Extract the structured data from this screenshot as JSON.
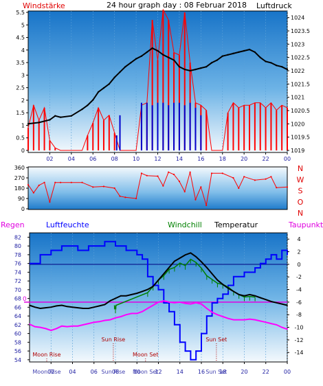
{
  "page": {
    "title": "24 hour graph day : 08 Februar 2018",
    "left_label": "Windstärke",
    "right_label": "Luftdruck"
  },
  "chart_data": [
    {
      "id": "wind-pressure",
      "type": "line",
      "x_ticks": [
        "02",
        "04",
        "06",
        "08",
        "10",
        "12",
        "14",
        "16",
        "18",
        "20",
        "22",
        "00"
      ],
      "x_range_hours": [
        0,
        24
      ],
      "left_axis": {
        "label": "Windstärke",
        "ticks": [
          "0",
          "0.5",
          "1",
          "1.5",
          "2",
          "2.5",
          "3",
          "3.5",
          "4",
          "4.5",
          "5",
          "5.5"
        ],
        "range": [
          0,
          5.5
        ]
      },
      "right_axis": {
        "label": "Luftdruck",
        "ticks": [
          "1019",
          "1019.5",
          "1020",
          "1020.5",
          "1021",
          "1021.5",
          "1022",
          "1022.5",
          "1023",
          "1023.5",
          "1024"
        ],
        "range": [
          1019,
          1024.25
        ]
      },
      "series": [
        {
          "name": "Luftdruck",
          "color": "#000000",
          "x": [
            0,
            1,
            2,
            2.5,
            3,
            4,
            5,
            5.5,
            6,
            6.5,
            7,
            7.5,
            8,
            8.5,
            9,
            9.5,
            10,
            10.5,
            11,
            11.5,
            12,
            12.5,
            13,
            13.5,
            14,
            14.5,
            15,
            15.5,
            16,
            16.5,
            17,
            17.5,
            18,
            18.5,
            19,
            19.5,
            20,
            20.5,
            21,
            21.5,
            22,
            22.5,
            23,
            23.5,
            24
          ],
          "y": [
            1020,
            1020.05,
            1020.15,
            1020.3,
            1020.25,
            1020.3,
            1020.55,
            1020.7,
            1020.9,
            1021.2,
            1021.35,
            1021.5,
            1021.75,
            1021.95,
            1022.15,
            1022.3,
            1022.45,
            1022.55,
            1022.7,
            1022.85,
            1022.75,
            1022.6,
            1022.5,
            1022.4,
            1022.15,
            1022.05,
            1022.0,
            1022.05,
            1022.1,
            1022.15,
            1022.3,
            1022.4,
            1022.55,
            1022.6,
            1022.65,
            1022.7,
            1022.75,
            1022.8,
            1022.7,
            1022.5,
            1022.35,
            1022.3,
            1022.2,
            1022.15,
            1022.05
          ]
        },
        {
          "name": "wind-speed",
          "color": "#ff0000",
          "x": [
            0,
            0.5,
            1,
            1.5,
            2,
            2.5,
            3,
            3.5,
            4,
            4.5,
            5,
            5.5,
            6,
            6.5,
            7,
            7.5,
            8,
            8.5,
            9,
            9.5,
            10,
            10.5,
            11,
            11.5,
            12,
            12.5,
            13,
            13.5,
            14,
            14.5,
            15,
            15.5,
            16,
            16.5,
            17,
            17.5,
            18,
            18.5,
            19,
            19.5,
            20,
            20.5,
            21,
            21.5,
            22,
            22.5,
            23,
            23.5,
            24
          ],
          "y": [
            0.9,
            1.8,
            1.2,
            1.7,
            0.4,
            0.1,
            0,
            0,
            0,
            0,
            0,
            0.6,
            1.1,
            1.7,
            1.2,
            1.4,
            0.7,
            0,
            0,
            0,
            0,
            1.8,
            1.9,
            5.2,
            3.6,
            5.6,
            5.2,
            3.9,
            3.8,
            5.5,
            3.5,
            1.9,
            1.8,
            1.6,
            0,
            0,
            0,
            1.5,
            1.9,
            1.7,
            1.8,
            1.8,
            1.9,
            1.9,
            1.7,
            1.9,
            1.6,
            1.8,
            1.7
          ]
        },
        {
          "name": "wind-calm",
          "color": "#0000cc",
          "x": [
            8.2,
            8.5,
            10.5,
            11,
            11.5,
            12,
            12.5,
            13,
            13.5,
            14,
            14.5,
            15,
            15.5,
            16
          ],
          "y": [
            0.6,
            1.4,
            1.9,
            1.9,
            1.8,
            1.9,
            1.9,
            1.8,
            1.9,
            1.9,
            1.8,
            1.9,
            1.7,
            1.4
          ]
        }
      ]
    },
    {
      "id": "wind-direction",
      "type": "line",
      "left_axis": {
        "ticks": [
          "0",
          "90",
          "180",
          "270",
          "360"
        ],
        "range": [
          0,
          360
        ]
      },
      "right_axis": {
        "ticks": [
          "N",
          "W",
          "S",
          "O",
          "N"
        ]
      },
      "series": [
        {
          "name": "direction",
          "color": "#ff0000",
          "x": [
            0,
            0.5,
            1,
            1.5,
            2,
            2.5,
            3,
            4,
            5,
            6,
            7,
            8,
            8.5,
            9,
            10,
            10.5,
            11,
            12,
            12.5,
            13,
            13.5,
            14,
            14.5,
            15,
            15.5,
            16,
            16.5,
            17,
            18,
            19,
            19.5,
            20,
            21,
            22,
            22.5,
            23,
            24
          ],
          "y": [
            210,
            140,
            205,
            230,
            60,
            230,
            230,
            230,
            230,
            190,
            195,
            180,
            110,
            100,
            90,
            310,
            290,
            285,
            200,
            320,
            300,
            240,
            150,
            320,
            80,
            190,
            30,
            310,
            310,
            270,
            180,
            280,
            250,
            260,
            280,
            185,
            190
          ]
        }
      ]
    },
    {
      "id": "humidity-temperature",
      "type": "line",
      "headers": {
        "regen": "Regen",
        "luftfeuchte": "Luftfeuchte",
        "windchill": "Windchill",
        "temperatur": "Temperatur",
        "taupunkt": "Taupunkt"
      },
      "left_axis": {
        "label": "Luftfeuchte",
        "ticks": [
          "54",
          "56",
          "58",
          "60",
          "62",
          "64",
          "66",
          "68",
          "70",
          "72",
          "74",
          "76",
          "78",
          "80",
          "82"
        ],
        "range": [
          53.5,
          83
        ]
      },
      "right_axis": {
        "label": "Temperatur",
        "ticks": [
          "-14",
          "-12",
          "-10",
          "-8",
          "-6",
          "-4",
          "-2",
          "0",
          "2",
          "4"
        ],
        "range": [
          -15.5,
          5
        ]
      },
      "zero_label": "0",
      "x_ticks": [
        "02",
        "04",
        "06",
        "08",
        "10",
        "12",
        "14",
        "16",
        "18",
        "20",
        "22",
        "00"
      ],
      "events": [
        {
          "label": "Moon Rise",
          "time": 1.6
        },
        {
          "label": "Sun Rise",
          "time": 7.8
        },
        {
          "label": "Moon Set",
          "time": 10.8
        },
        {
          "label": "Sun Set",
          "time": 17.4
        }
      ],
      "series": [
        {
          "name": "Luftfeuchte",
          "color": "#0000ff",
          "x": [
            0,
            1,
            2,
            3,
            4,
            4.5,
            5,
            5.5,
            6,
            6.5,
            7,
            7.5,
            8,
            8.5,
            9,
            9.5,
            10,
            10.5,
            11,
            11.5,
            12,
            12.5,
            13,
            13.5,
            14,
            14.5,
            15,
            15.5,
            16,
            16.5,
            17,
            17.5,
            18,
            18.5,
            19,
            19.5,
            20,
            20.5,
            21,
            21.5,
            22,
            22.5,
            23,
            23.5,
            24
          ],
          "y": [
            76,
            78,
            79,
            80,
            80,
            79,
            79,
            80,
            80,
            80,
            81,
            81,
            80,
            80,
            79,
            79,
            78,
            77,
            73,
            71,
            70,
            67,
            65,
            62,
            58,
            56,
            54,
            56,
            60,
            64,
            67,
            68,
            69,
            71,
            73,
            73,
            74,
            74,
            75,
            76,
            77,
            78,
            77,
            79,
            78
          ]
        },
        {
          "name": "Temperatur",
          "color": "#000000",
          "x": [
            0,
            0.5,
            1,
            1.5,
            2,
            2.5,
            3,
            3.5,
            4,
            4.5,
            5,
            5.5,
            6,
            6.5,
            7,
            7.5,
            8,
            8.5,
            9,
            9.5,
            10,
            10.5,
            11,
            11.5,
            12,
            12.5,
            13,
            13.5,
            14,
            14.5,
            15,
            15.5,
            16,
            16.5,
            17,
            17.5,
            18,
            18.5,
            19,
            19.5,
            20,
            20.5,
            21,
            21.5,
            22,
            22.5,
            23,
            23.5,
            24
          ],
          "y": [
            -6.5,
            -6.8,
            -7.0,
            -6.9,
            -6.8,
            -6.6,
            -6.5,
            -6.7,
            -6.8,
            -6.9,
            -7.0,
            -7.0,
            -6.8,
            -6.6,
            -6.4,
            -5.8,
            -5.4,
            -5.0,
            -5.0,
            -4.8,
            -4.6,
            -4.3,
            -4.0,
            -3.5,
            -2.5,
            -1.5,
            -0.5,
            0.5,
            1.0,
            1.5,
            1.8,
            1.2,
            0.4,
            -0.5,
            -1.5,
            -2.5,
            -3.2,
            -3.8,
            -4.3,
            -4.8,
            -5.0,
            -4.8,
            -5.0,
            -5.3,
            -5.6,
            -5.9,
            -6.1,
            -6.3,
            -6.5
          ]
        },
        {
          "name": "Windchill",
          "color": "#008000",
          "x": [
            7.9,
            8,
            8.05,
            11,
            11.5,
            12,
            12.5,
            13,
            13.5,
            14,
            14.5,
            15,
            15.5,
            16,
            16.5,
            17,
            17.5,
            18,
            18.5,
            19,
            19.5,
            20,
            20.5,
            21
          ],
          "y": [
            -6.5,
            -7.1,
            -6.5,
            -4.5,
            -3.5,
            -2.5,
            -1.8,
            -0.8,
            -0.5,
            0.2,
            -0.2,
            0.8,
            0.3,
            -0.6,
            -1.8,
            -2.4,
            -3.0,
            -3.2,
            -3.6,
            -4.3,
            -4.8,
            -5.2,
            -5.1,
            -5.2
          ]
        },
        {
          "name": "Taupunkt",
          "color": "#ff00ff",
          "x": [
            0,
            0.5,
            1,
            1.5,
            2,
            2.5,
            3,
            3.5,
            4,
            4.5,
            5,
            5.5,
            6,
            6.5,
            7,
            7.5,
            8,
            8.5,
            9,
            9.5,
            10,
            10.5,
            11,
            11.5,
            12,
            12.5,
            13,
            13.5,
            14,
            14.5,
            15,
            15.5,
            16,
            16.5,
            17,
            17.5,
            18,
            18.5,
            19,
            19.5,
            20,
            20.5,
            21,
            21.5,
            22,
            22.5,
            23,
            23.5,
            24
          ],
          "y": [
            -9.5,
            -9.9,
            -10.0,
            -10.2,
            -10.5,
            -10.2,
            -9.8,
            -9.9,
            -9.8,
            -9.8,
            -9.6,
            -9.4,
            -9.2,
            -9.1,
            -8.9,
            -8.8,
            -8.5,
            -8.3,
            -8.0,
            -7.8,
            -7.8,
            -7.5,
            -7.0,
            -6.5,
            -6.0,
            -5.8,
            -6.0,
            -6.1,
            -6.0,
            -6.2,
            -6.3,
            -6.1,
            -6.3,
            -7.0,
            -7.6,
            -8.0,
            -8.3,
            -8.6,
            -8.8,
            -8.8,
            -8.8,
            -8.7,
            -8.8,
            -9.0,
            -9.2,
            -9.4,
            -9.6,
            -10.0,
            -10.3
          ]
        }
      ]
    }
  ]
}
